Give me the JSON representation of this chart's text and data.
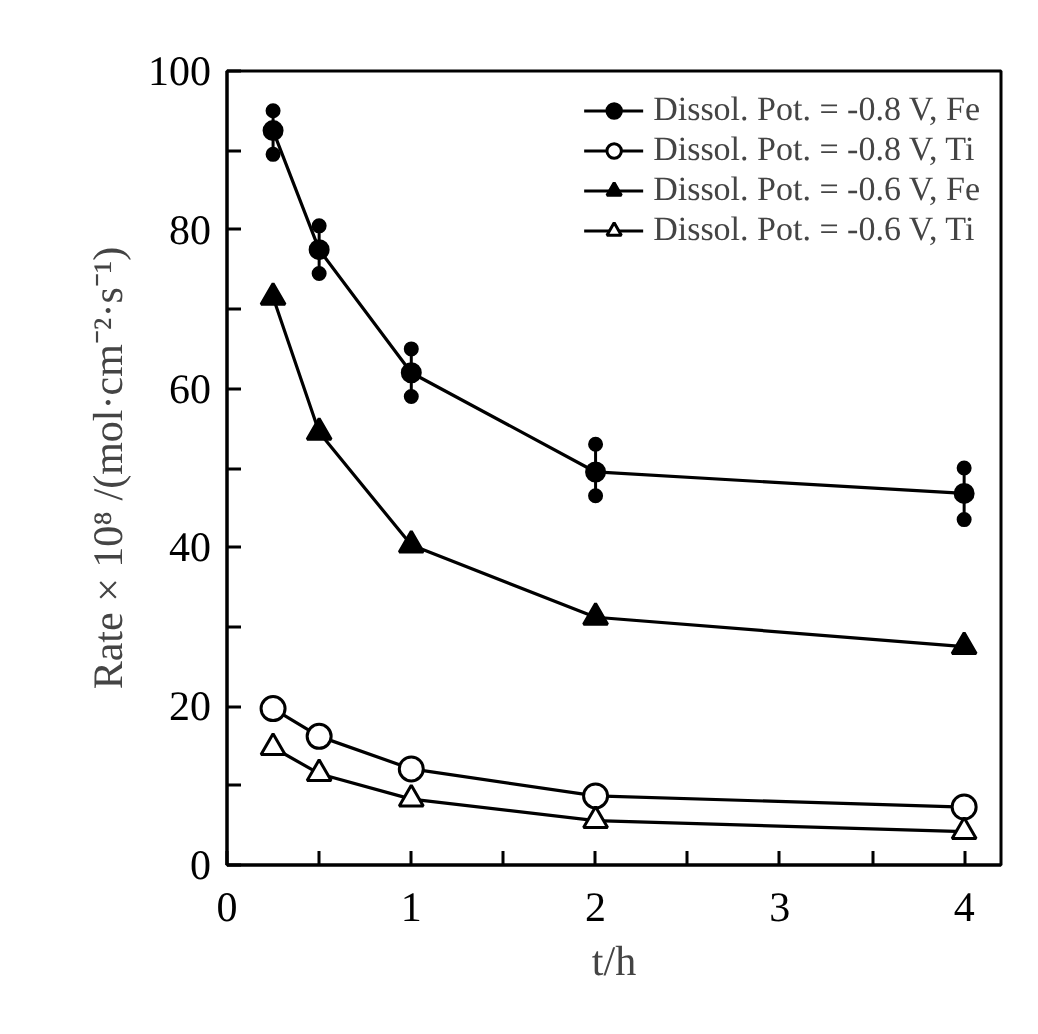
{
  "chart_data": {
    "type": "line",
    "xlabel": "t/h",
    "ylabel": "Rate × 10⁸ /(mol·cm⁻²·s⁻¹)",
    "xlim": [
      0,
      4.2
    ],
    "ylim": [
      0,
      100
    ],
    "xticks": [
      0,
      {
        "value": 0.5,
        "label": null
      },
      1,
      {
        "value": 1.5,
        "label": null
      },
      2,
      {
        "value": 2.5,
        "label": null
      },
      3,
      {
        "value": 3.5,
        "label": null
      },
      4
    ],
    "yticks": [
      0,
      {
        "value": 10,
        "label": null
      },
      20,
      {
        "value": 30,
        "label": null
      },
      40,
      {
        "value": 50,
        "label": null
      },
      60,
      {
        "value": 70,
        "label": null
      },
      80,
      {
        "value": 90,
        "label": null
      },
      100
    ],
    "x": [
      0.25,
      0.5,
      1,
      2,
      4
    ],
    "grid": false,
    "legend": "top right",
    "line_style": "solid",
    "series": [
      {
        "name": "Dissol. Pot. = -0.8 V, Fe",
        "color": "#000000",
        "marker": "circle",
        "values": [
          92.5,
          77.5,
          62,
          49.5,
          46.8
        ],
        "errors": [
          [
            89.5,
            95
          ],
          [
            74.5,
            80.5
          ],
          [
            59,
            65
          ],
          [
            46.5,
            53
          ],
          [
            43.5,
            50
          ]
        ]
      },
      {
        "name": "Dissol. Pot. = -0.8 V, Ti",
        "color": "#000000",
        "marker": "circle_open",
        "values": [
          19.7,
          16.2,
          12.1,
          8.7,
          7.3
        ]
      },
      {
        "name": "Dissol. Pot. = -0.6 V, Fe",
        "color": "#000000",
        "marker": "triangle",
        "values": [
          71.5,
          54.5,
          40.3,
          31.2,
          27.5
        ]
      },
      {
        "name": "Dissol. Pot. = -0.6 V, Ti",
        "color": "#000000",
        "marker": "triangle_open",
        "values": [
          14.8,
          11.5,
          8.3,
          5.6,
          4.2
        ]
      },
      {
        "type": "scatter",
        "color": "#000000",
        "marker": "circle",
        "x": [
          0.25,
          0.25,
          0.5,
          0.5,
          1,
          1,
          2,
          2,
          4,
          4
        ],
        "values": [
          89.5,
          95,
          74.5,
          80.5,
          59,
          65,
          46.5,
          53,
          43.5,
          50
        ]
      }
    ]
  }
}
